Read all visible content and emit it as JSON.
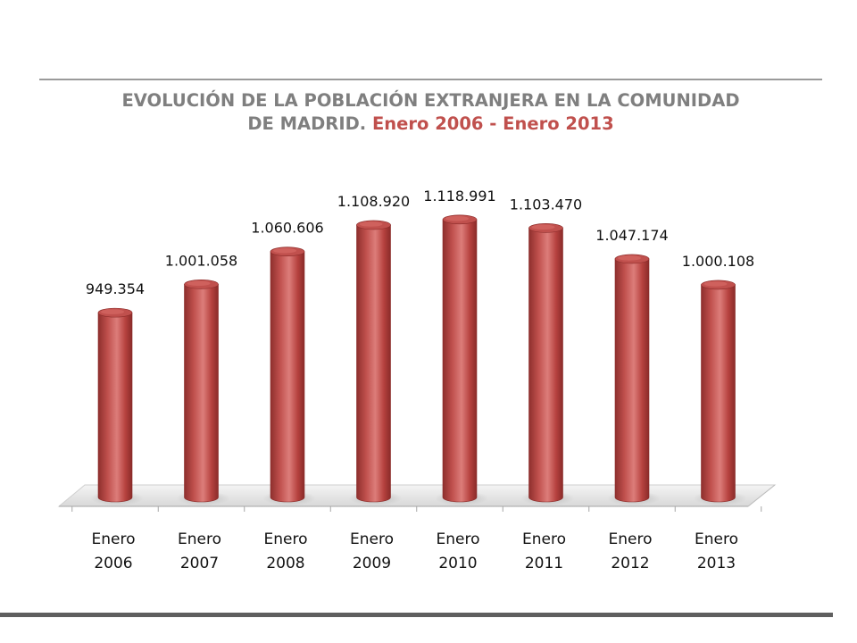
{
  "title": {
    "line1": "EVOLUCIÓN DE LA POBLACIÓN EXTRANJERA EN LA COMUNIDAD",
    "line2_prefix": "DE MADRID.",
    "line2_accent": "Enero 2006 - Enero 2013"
  },
  "colors": {
    "bar": "#c0504d",
    "title_gray": "#7f7f7f",
    "title_accent": "#c0504d"
  },
  "chart_data": {
    "type": "bar",
    "style": "3d-cylinder",
    "categories": [
      [
        "Enero",
        "2006"
      ],
      [
        "Enero",
        "2007"
      ],
      [
        "Enero",
        "2008"
      ],
      [
        "Enero",
        "2009"
      ],
      [
        "Enero",
        "2010"
      ],
      [
        "Enero",
        "2011"
      ],
      [
        "Enero",
        "2012"
      ],
      [
        "Enero",
        "2013"
      ]
    ],
    "values": [
      949354,
      1001058,
      1060606,
      1108920,
      1118991,
      1103470,
      1047174,
      1000108
    ],
    "data_labels": [
      "949.354",
      "1.001.058",
      "1.060.606",
      "1.108.920",
      "1.118.991",
      "1.103.470",
      "1.047.174",
      "1.000.108"
    ],
    "title": "EVOLUCIÓN DE LA POBLACIÓN EXTRANJERA EN LA COMUNIDAD DE MADRID. Enero 2006 - Enero 2013",
    "xlabel": "",
    "ylabel": "",
    "ylim": [
      800000,
      1130000
    ],
    "grid": false,
    "legend": "none"
  }
}
